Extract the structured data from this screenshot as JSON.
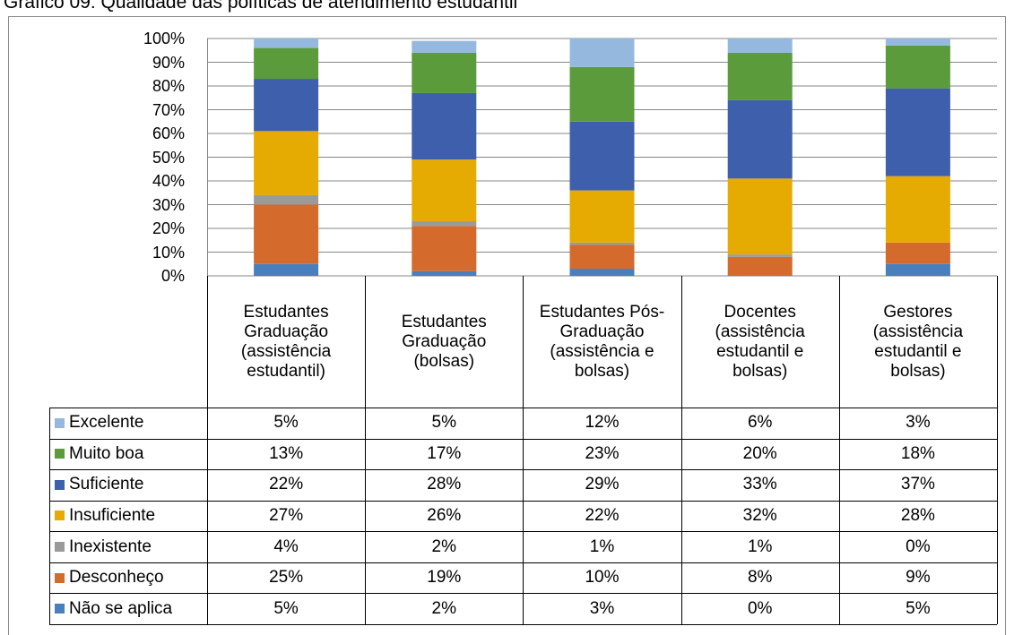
{
  "chart_data": {
    "type": "stacked_bar",
    "title": "Gráfico 09: Qualidade das políticas de atendimento estudantil",
    "categories": [
      "Estudantes Graduação (assistência estudantil)",
      "Estudantes Graduação (bolsas)",
      "Estudantes Pós-Graduação (assistência e bolsas)",
      "Docentes (assistência estudantil e bolsas)",
      "Gestores (assistência estudantil e bolsas)"
    ],
    "series": [
      {
        "name": "Excelente",
        "color": "#95b9de",
        "values": [
          5,
          5,
          12,
          6,
          3
        ],
        "value_labels": [
          "5%",
          "5%",
          "12%",
          "6%",
          "3%"
        ]
      },
      {
        "name": "Muito boa",
        "color": "#5b9b3b",
        "values": [
          13,
          17,
          23,
          20,
          18
        ],
        "value_labels": [
          "13%",
          "17%",
          "23%",
          "20%",
          "18%"
        ]
      },
      {
        "name": "Suficiente",
        "color": "#3e5fab",
        "values": [
          22,
          28,
          29,
          33,
          37
        ],
        "value_labels": [
          "22%",
          "28%",
          "29%",
          "33%",
          "37%"
        ]
      },
      {
        "name": "Insuficiente",
        "color": "#e6ab02",
        "values": [
          27,
          26,
          22,
          32,
          28
        ],
        "value_labels": [
          "27%",
          "26%",
          "22%",
          "32%",
          "28%"
        ]
      },
      {
        "name": "Inexistente",
        "color": "#9a9a9a",
        "values": [
          4,
          2,
          1,
          1,
          0
        ],
        "value_labels": [
          "4%",
          "2%",
          "1%",
          "1%",
          "0%"
        ]
      },
      {
        "name": "Desconheço",
        "color": "#d46a2c",
        "values": [
          25,
          19,
          10,
          8,
          9
        ],
        "value_labels": [
          "25%",
          "19%",
          "10%",
          "8%",
          "9%"
        ]
      },
      {
        "name": "Não se aplica",
        "color": "#4a7fbd",
        "values": [
          5,
          2,
          3,
          0,
          5
        ],
        "value_labels": [
          "5%",
          "2%",
          "3%",
          "0%",
          "5%"
        ]
      }
    ],
    "ylim": [
      0,
      100
    ],
    "yticks": [
      {
        "value": 0,
        "label": "0%"
      },
      {
        "value": 10,
        "label": "10%"
      },
      {
        "value": 20,
        "label": "20%"
      },
      {
        "value": 30,
        "label": "30%"
      },
      {
        "value": 40,
        "label": "40%"
      },
      {
        "value": 50,
        "label": "50%"
      },
      {
        "value": 60,
        "label": "60%"
      },
      {
        "value": 70,
        "label": "70%"
      },
      {
        "value": 80,
        "label": "80%"
      },
      {
        "value": 90,
        "label": "90%"
      },
      {
        "value": 100,
        "label": "100%"
      }
    ],
    "grid": true
  }
}
